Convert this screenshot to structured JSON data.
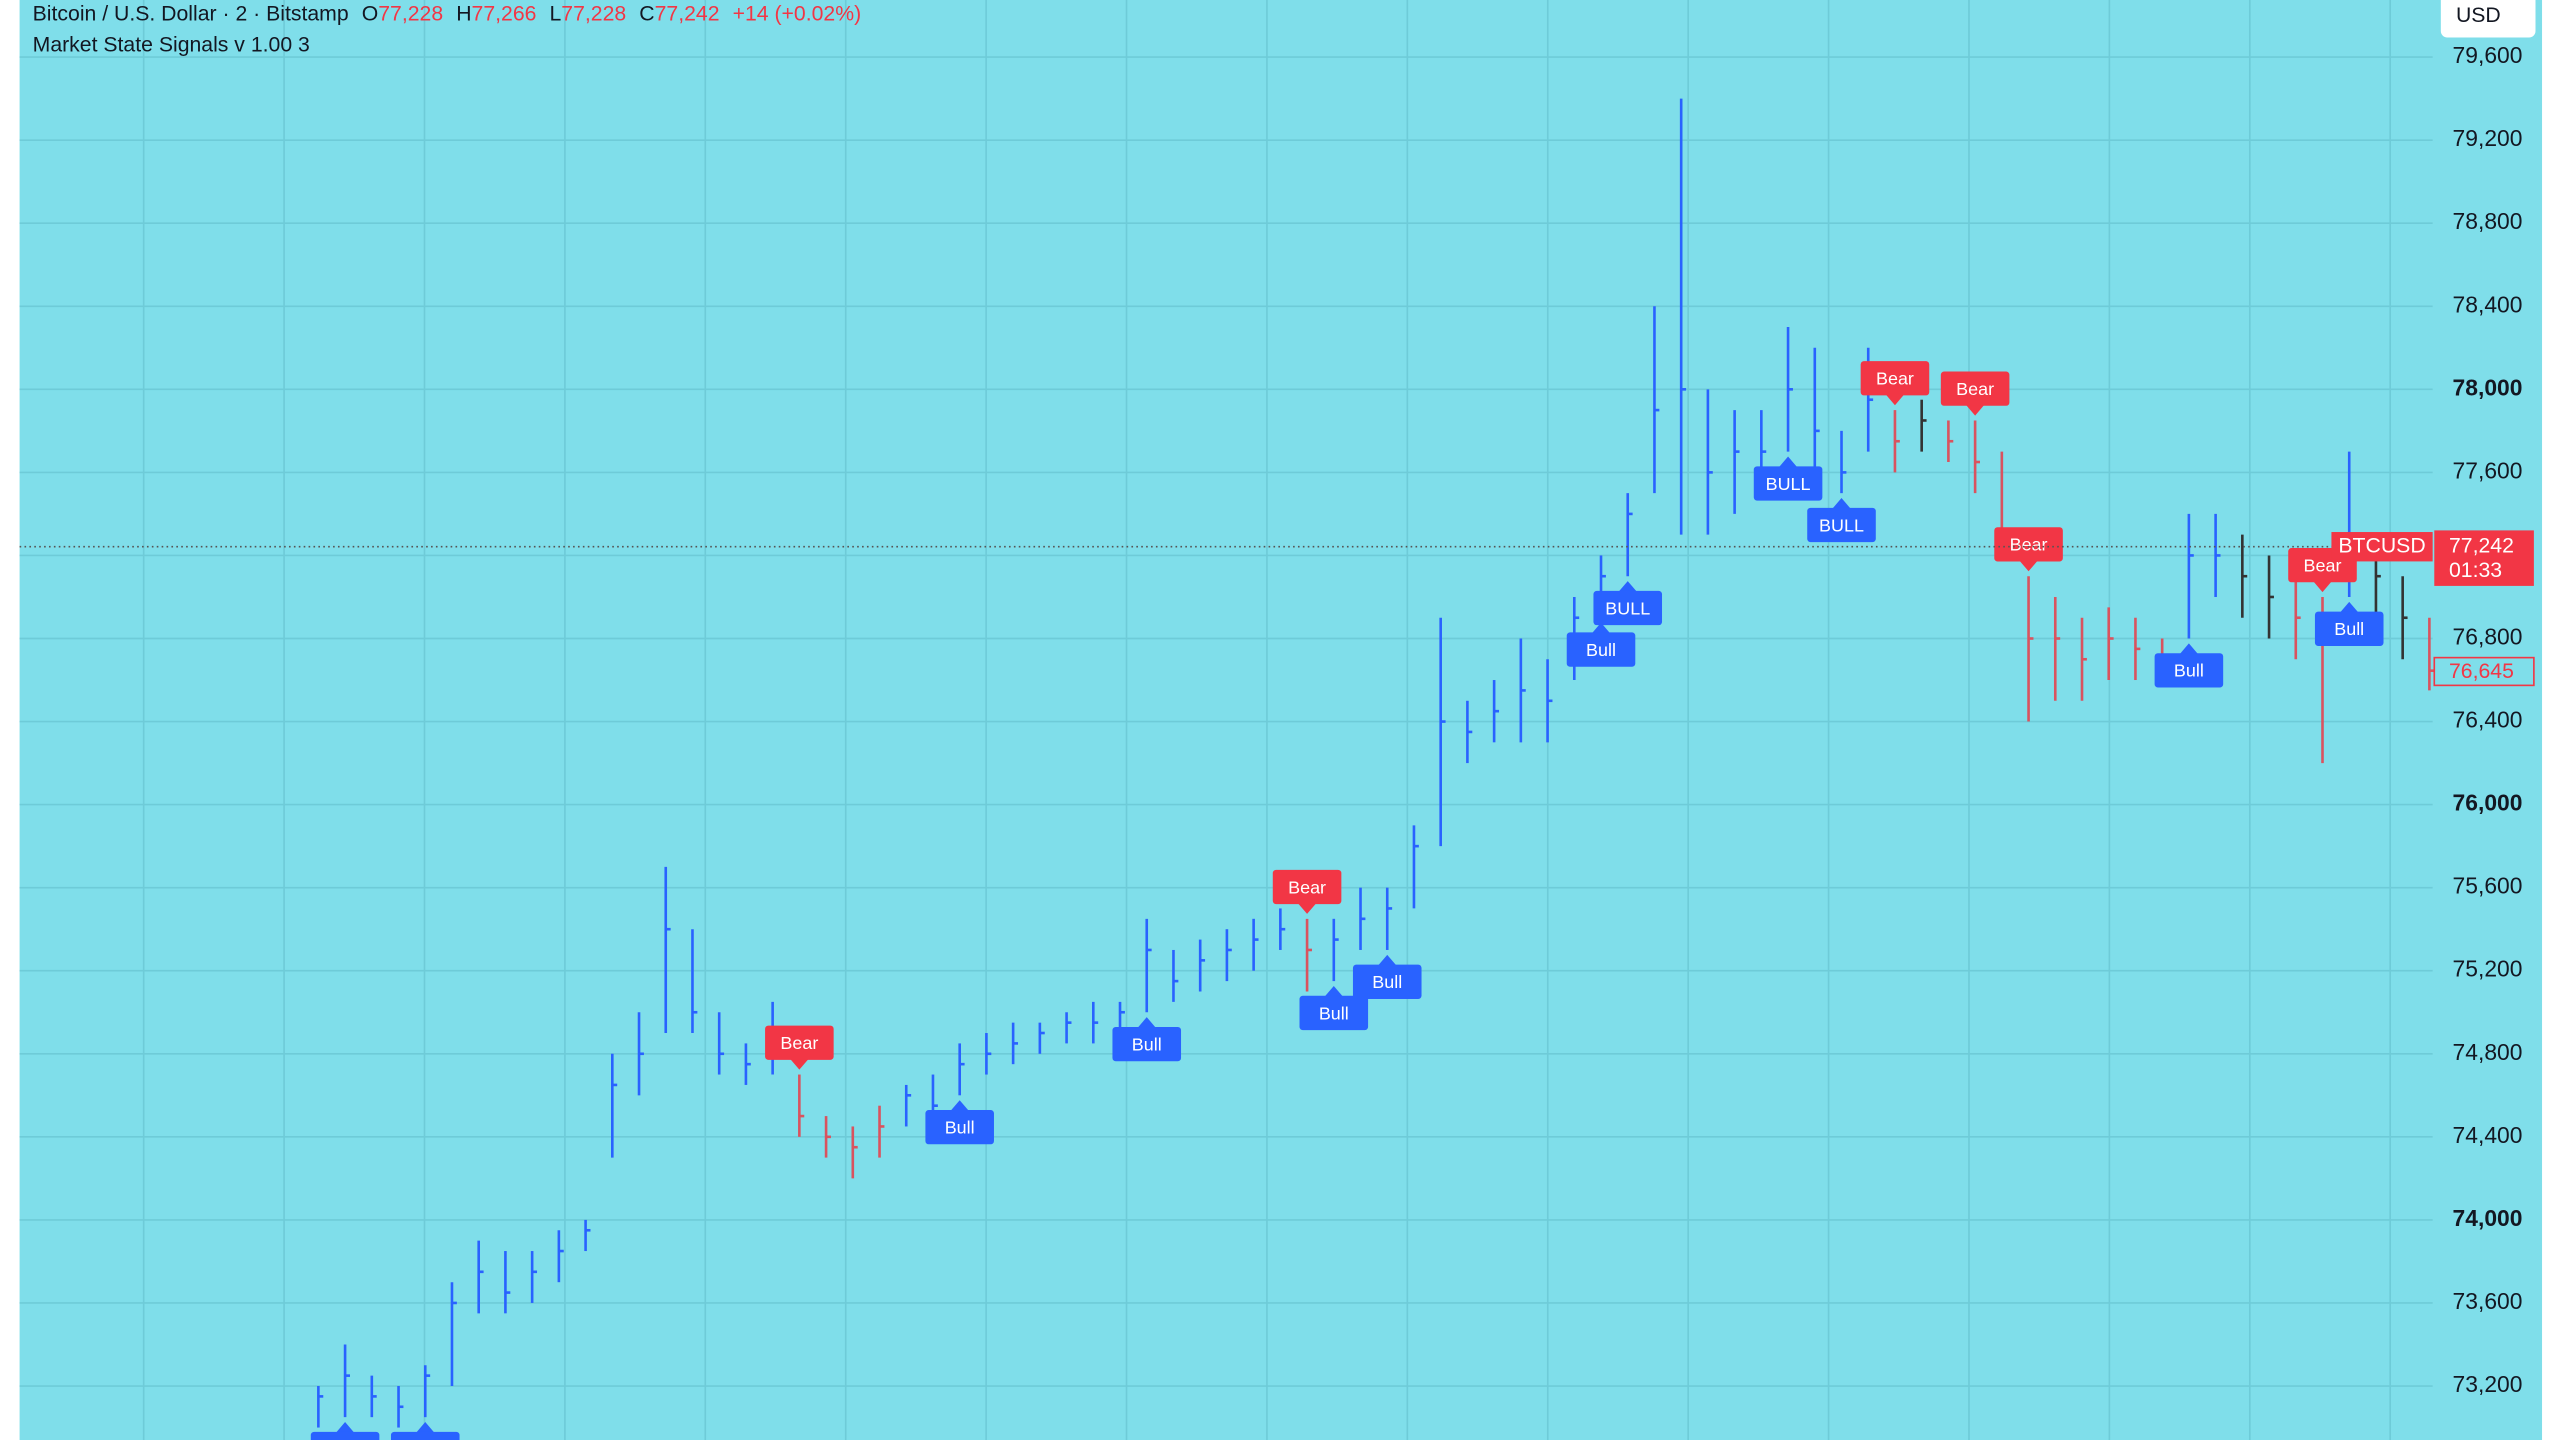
{
  "chart_data": {
    "type": "hlc",
    "title": "Bitcoin / U.S. Dollar · 2 · Bitstamp",
    "ohlc_legend": [
      {
        "key": "O",
        "value": "77,228"
      },
      {
        "key": "H",
        "value": "77,266"
      },
      {
        "key": "L",
        "value": "77,228"
      },
      {
        "key": "C",
        "value": "77,242"
      }
    ],
    "change": "+14 (+0.02%)",
    "indicator": "Market State Signals v 1.00 3",
    "currency": "USD",
    "ylim": [
      72940,
      79875
    ],
    "yticks": [
      {
        "value": 73200,
        "label": "73,200"
      },
      {
        "value": 73600,
        "label": "73,600"
      },
      {
        "value": 74000,
        "label": "74,000"
      },
      {
        "value": 74400,
        "label": "74,400"
      },
      {
        "value": 74800,
        "label": "74,800"
      },
      {
        "value": 75200,
        "label": "75,200"
      },
      {
        "value": 75600,
        "label": "75,600"
      },
      {
        "value": 76000,
        "label": "76,000"
      },
      {
        "value": 76400,
        "label": "76,400"
      },
      {
        "value": 76800,
        "label": "76,800"
      },
      {
        "value": 77200,
        "label": "77,200"
      },
      {
        "value": 77600,
        "label": "77,600"
      },
      {
        "value": 78000,
        "label": "78,000"
      },
      {
        "value": 78400,
        "label": "78,400"
      },
      {
        "value": 78800,
        "label": "78,800"
      },
      {
        "value": 79200,
        "label": "79,200"
      },
      {
        "value": 79600,
        "label": "79,600"
      }
    ],
    "grid": true,
    "high": [
      73200,
      73400,
      73250,
      73200,
      73300,
      73700,
      73900,
      73850,
      73850,
      73950,
      74000,
      74800,
      75000,
      75700,
      75400,
      75000,
      74850,
      75050,
      74700,
      74500,
      74450,
      74550,
      74650,
      74700,
      74850,
      74900,
      74950,
      74950,
      75000,
      75050,
      75050,
      75450,
      75300,
      75350,
      75400,
      75450,
      75500,
      75450,
      75450,
      75600,
      75600,
      75900,
      76900,
      76500,
      76600,
      76800,
      76700,
      77000,
      77200,
      77500,
      78400,
      79400,
      78000,
      77900,
      77900,
      78300,
      78200,
      77800,
      78200,
      77900,
      77950,
      77850,
      77850,
      77700,
      77100,
      77000,
      76900,
      76950,
      76900,
      76800,
      77400,
      77400,
      77300,
      77200,
      77100,
      77000,
      77700,
      77200,
      77100,
      76900
    ],
    "low": [
      73000,
      73050,
      73050,
      73000,
      73050,
      73200,
      73550,
      73550,
      73600,
      73700,
      73850,
      74300,
      74600,
      74900,
      74900,
      74700,
      74650,
      74700,
      74400,
      74300,
      74200,
      74300,
      74450,
      74400,
      74600,
      74700,
      74750,
      74800,
      74850,
      74850,
      74900,
      75000,
      75050,
      75100,
      75150,
      75200,
      75300,
      75100,
      75150,
      75300,
      75300,
      75500,
      75800,
      76200,
      76300,
      76300,
      76300,
      76600,
      76900,
      77100,
      77500,
      77300,
      77300,
      77400,
      77500,
      77700,
      77600,
      77500,
      77700,
      77600,
      77700,
      77650,
      77500,
      77200,
      76400,
      76500,
      76500,
      76600,
      76600,
      76600,
      76800,
      77000,
      76900,
      76800,
      76700,
      76200,
      77000,
      76800,
      76700,
      76550
    ],
    "close": [
      73150,
      73250,
      73150,
      73100,
      73250,
      73600,
      73750,
      73650,
      73750,
      73850,
      73950,
      74650,
      74800,
      75400,
      75000,
      74800,
      74750,
      74850,
      74500,
      74400,
      74350,
      74450,
      74600,
      74550,
      74750,
      74800,
      74850,
      74900,
      74950,
      74950,
      75000,
      75300,
      75150,
      75250,
      75300,
      75350,
      75400,
      75300,
      75350,
      75450,
      75500,
      75800,
      76400,
      76350,
      76450,
      76550,
      76500,
      76900,
      77100,
      77400,
      77900,
      78000,
      77600,
      77700,
      77700,
      78000,
      77800,
      77600,
      77950,
      77750,
      77850,
      77750,
      77650,
      77300,
      76800,
      76800,
      76700,
      76800,
      76750,
      76700,
      77200,
      77200,
      77100,
      77000,
      76900,
      76800,
      77300,
      77100,
      76900,
      76645
    ],
    "bar_colors": [
      "#2962ff",
      "#2962ff",
      "#2962ff",
      "#2962ff",
      "#2962ff",
      "#2962ff",
      "#2962ff",
      "#2962ff",
      "#2962ff",
      "#2962ff",
      "#2962ff",
      "#2962ff",
      "#2962ff",
      "#2962ff",
      "#2962ff",
      "#2962ff",
      "#2962ff",
      "#2962ff",
      "#d9535f",
      "#d9535f",
      "#d9535f",
      "#d9535f",
      "#2962ff",
      "#2962ff",
      "#2962ff",
      "#2962ff",
      "#2962ff",
      "#2962ff",
      "#2962ff",
      "#2962ff",
      "#2962ff",
      "#2962ff",
      "#2962ff",
      "#2962ff",
      "#2962ff",
      "#2962ff",
      "#2962ff",
      "#d9535f",
      "#2962ff",
      "#2962ff",
      "#2962ff",
      "#2962ff",
      "#2962ff",
      "#2962ff",
      "#2962ff",
      "#2962ff",
      "#2962ff",
      "#2962ff",
      "#2962ff",
      "#2962ff",
      "#2962ff",
      "#2962ff",
      "#2962ff",
      "#2962ff",
      "#2962ff",
      "#2962ff",
      "#2962ff",
      "#2962ff",
      "#2962ff",
      "#d9535f",
      "#333333",
      "#d9535f",
      "#d9535f",
      "#d9535f",
      "#d9535f",
      "#d9535f",
      "#d9535f",
      "#d9535f",
      "#d9535f",
      "#d9535f",
      "#2962ff",
      "#2962ff",
      "#333333",
      "#333333",
      "#d9535f",
      "#d9535f",
      "#2962ff",
      "#333333",
      "#333333",
      "#d9535f"
    ],
    "signals": [
      {
        "label": "BULL",
        "index": 1,
        "color": "#2962ff"
      },
      {
        "label": "BULL",
        "index": 4,
        "color": "#2962ff"
      },
      {
        "label": "Bear",
        "index": 18,
        "color": "#f23645"
      },
      {
        "label": "Bull",
        "index": 24,
        "color": "#2962ff"
      },
      {
        "label": "Bull",
        "index": 31,
        "color": "#2962ff"
      },
      {
        "label": "Bear",
        "index": 37,
        "color": "#f23645"
      },
      {
        "label": "Bull",
        "index": 38,
        "color": "#2962ff"
      },
      {
        "label": "Bull",
        "index": 40,
        "color": "#2962ff"
      },
      {
        "label": "Bull",
        "index": 48,
        "color": "#2962ff"
      },
      {
        "label": "BULL",
        "index": 49,
        "color": "#2962ff"
      },
      {
        "label": "BULL",
        "index": 55,
        "color": "#2962ff"
      },
      {
        "label": "BULL",
        "index": 57,
        "color": "#2962ff"
      },
      {
        "label": "Bear",
        "index": 59,
        "color": "#f23645"
      },
      {
        "label": "Bear",
        "index": 62,
        "color": "#f23645"
      },
      {
        "label": "Bear",
        "index": 64,
        "color": "#f23645"
      },
      {
        "label": "Bull",
        "index": 70,
        "color": "#2962ff"
      },
      {
        "label": "Bear",
        "index": 75,
        "color": "#f23645"
      },
      {
        "label": "Bull",
        "index": 76,
        "color": "#2962ff"
      }
    ],
    "last_price": {
      "symbol": "BTCUSD",
      "value": 77242,
      "label": "77,242",
      "countdown": "01:33",
      "color": "#f23645"
    },
    "price_marker": {
      "value": 76645,
      "label": "76,645",
      "color": "#f23645"
    }
  }
}
